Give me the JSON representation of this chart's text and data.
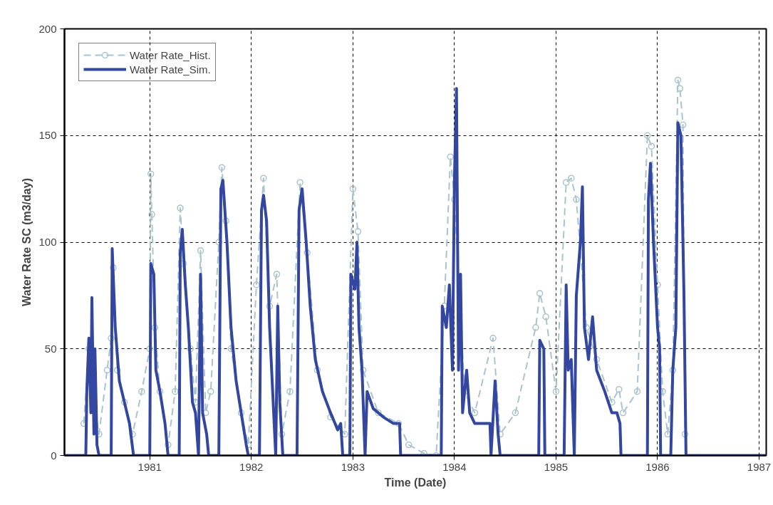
{
  "chart_data": {
    "type": "line",
    "xlabel": "Time (Date)",
    "ylabel": "Water Rate SC (m3/day)",
    "xlim": [
      1980.16,
      1987.07
    ],
    "xticks": [
      1981,
      1982,
      1983,
      1984,
      1985,
      1986,
      1987
    ],
    "ylim": [
      0,
      200
    ],
    "yticks": [
      0,
      50,
      100,
      150,
      200
    ],
    "grid": true,
    "legend": "top left",
    "series": [
      {
        "name": "Water Rate_Hist.",
        "color": "#a9c4cc",
        "line_style": "dashed",
        "marker": "circle",
        "x": [
          1980.35,
          1980.4,
          1980.45,
          1980.5,
          1980.58,
          1980.62,
          1980.64,
          1980.68,
          1980.75,
          1980.83,
          1980.92,
          1981.0,
          1981.01,
          1981.02,
          1981.05,
          1981.1,
          1981.18,
          1981.25,
          1981.3,
          1981.33,
          1981.4,
          1981.45,
          1981.5,
          1981.55,
          1981.6,
          1981.68,
          1981.71,
          1981.75,
          1981.8,
          1981.9,
          1981.97,
          1982.05,
          1982.12,
          1982.18,
          1982.25,
          1982.3,
          1982.38,
          1982.48,
          1982.55,
          1982.65,
          1982.78,
          1982.92,
          1983.0,
          1983.05,
          1983.1,
          1983.25,
          1983.45,
          1983.55,
          1983.7,
          1983.82,
          1983.9,
          1983.96,
          1984.0,
          1984.1,
          1984.2,
          1984.38,
          1984.45,
          1984.6,
          1984.8,
          1984.84,
          1984.9,
          1985.0,
          1985.1,
          1985.15,
          1985.2,
          1985.3,
          1985.4,
          1985.55,
          1985.62,
          1985.66,
          1985.8,
          1985.9,
          1985.94,
          1986.0,
          1986.05,
          1986.1,
          1986.15,
          1986.2,
          1986.22,
          1986.25,
          1986.27
        ],
        "values": [
          15,
          50,
          25,
          10,
          40,
          55,
          88,
          40,
          25,
          10,
          30,
          50,
          132,
          113,
          60,
          30,
          5,
          30,
          116,
          90,
          50,
          25,
          96,
          20,
          30,
          100,
          135,
          110,
          50,
          20,
          5,
          80,
          130,
          70,
          85,
          10,
          30,
          128,
          95,
          40,
          18,
          10,
          125,
          105,
          40,
          20,
          15,
          5,
          1,
          0,
          70,
          140,
          120,
          30,
          20,
          55,
          10,
          20,
          60,
          76,
          65,
          30,
          128,
          130,
          120,
          60,
          45,
          25,
          31,
          20,
          30,
          150,
          145,
          80,
          30,
          10,
          40,
          176,
          172,
          155,
          10
        ]
      },
      {
        "name": "Water Rate_Sim.",
        "color": "#3346a0",
        "line_style": "solid",
        "marker": "none",
        "x": [
          1980.16,
          1980.37,
          1980.38,
          1980.4,
          1980.42,
          1980.43,
          1980.45,
          1980.46,
          1980.48,
          1980.5,
          1980.62,
          1980.63,
          1980.66,
          1980.7,
          1980.75,
          1980.8,
          1980.84,
          1981.0,
          1981.01,
          1981.04,
          1981.06,
          1981.1,
          1981.15,
          1981.18,
          1981.29,
          1981.3,
          1981.32,
          1981.35,
          1981.38,
          1981.42,
          1981.45,
          1981.48,
          1981.5,
          1981.52,
          1981.56,
          1981.58,
          1981.68,
          1981.7,
          1981.72,
          1981.76,
          1981.8,
          1981.85,
          1981.9,
          1981.95,
          1981.97,
          1982.08,
          1982.1,
          1982.12,
          1982.15,
          1982.18,
          1982.2,
          1982.22,
          1982.24,
          1982.26,
          1982.28,
          1982.31,
          1982.45,
          1982.47,
          1982.5,
          1982.54,
          1982.58,
          1982.63,
          1982.7,
          1982.78,
          1982.85,
          1982.88,
          1982.9,
          1982.97,
          1982.98,
          1983.02,
          1983.04,
          1983.06,
          1983.09,
          1983.12,
          1983.14,
          1983.2,
          1983.3,
          1983.4,
          1983.46,
          1983.47,
          1983.87,
          1983.88,
          1983.92,
          1983.95,
          1983.98,
          1984.0,
          1984.02,
          1984.04,
          1984.06,
          1984.08,
          1984.12,
          1984.15,
          1984.2,
          1984.28,
          1984.35,
          1984.36,
          1984.4,
          1984.43,
          1984.45,
          1984.83,
          1984.84,
          1984.88,
          1984.89,
          1985.08,
          1985.1,
          1985.12,
          1985.15,
          1985.18,
          1985.2,
          1985.24,
          1985.26,
          1985.28,
          1985.32,
          1985.36,
          1985.4,
          1985.48,
          1985.55,
          1985.6,
          1985.63,
          1985.64,
          1985.9,
          1985.91,
          1985.93,
          1985.96,
          1986.0,
          1986.02,
          1986.03,
          1986.13,
          1986.15,
          1986.18,
          1986.2,
          1986.23,
          1986.26,
          1986.28,
          1987.07
        ],
        "values": [
          0,
          0,
          30,
          55,
          20,
          74,
          10,
          50,
          5,
          0,
          0,
          97,
          60,
          35,
          25,
          15,
          0,
          0,
          90,
          85,
          40,
          30,
          15,
          0,
          0,
          95,
          106,
          80,
          60,
          25,
          20,
          0,
          85,
          20,
          10,
          0,
          0,
          125,
          129,
          100,
          60,
          35,
          20,
          5,
          0,
          0,
          115,
          122,
          110,
          60,
          40,
          20,
          0,
          70,
          25,
          0,
          0,
          115,
          125,
          100,
          70,
          45,
          30,
          20,
          12,
          15,
          0,
          0,
          85,
          78,
          100,
          60,
          40,
          0,
          30,
          22,
          18,
          15,
          15,
          0,
          0,
          70,
          60,
          80,
          40,
          130,
          172,
          40,
          85,
          20,
          40,
          20,
          15,
          15,
          15,
          0,
          35,
          10,
          0,
          0,
          54,
          50,
          0,
          0,
          80,
          40,
          45,
          0,
          75,
          100,
          126,
          60,
          45,
          65,
          40,
          30,
          20,
          20,
          15,
          0,
          0,
          120,
          137,
          100,
          60,
          50,
          0,
          0,
          40,
          60,
          156,
          150,
          75,
          0,
          0
        ]
      }
    ]
  }
}
